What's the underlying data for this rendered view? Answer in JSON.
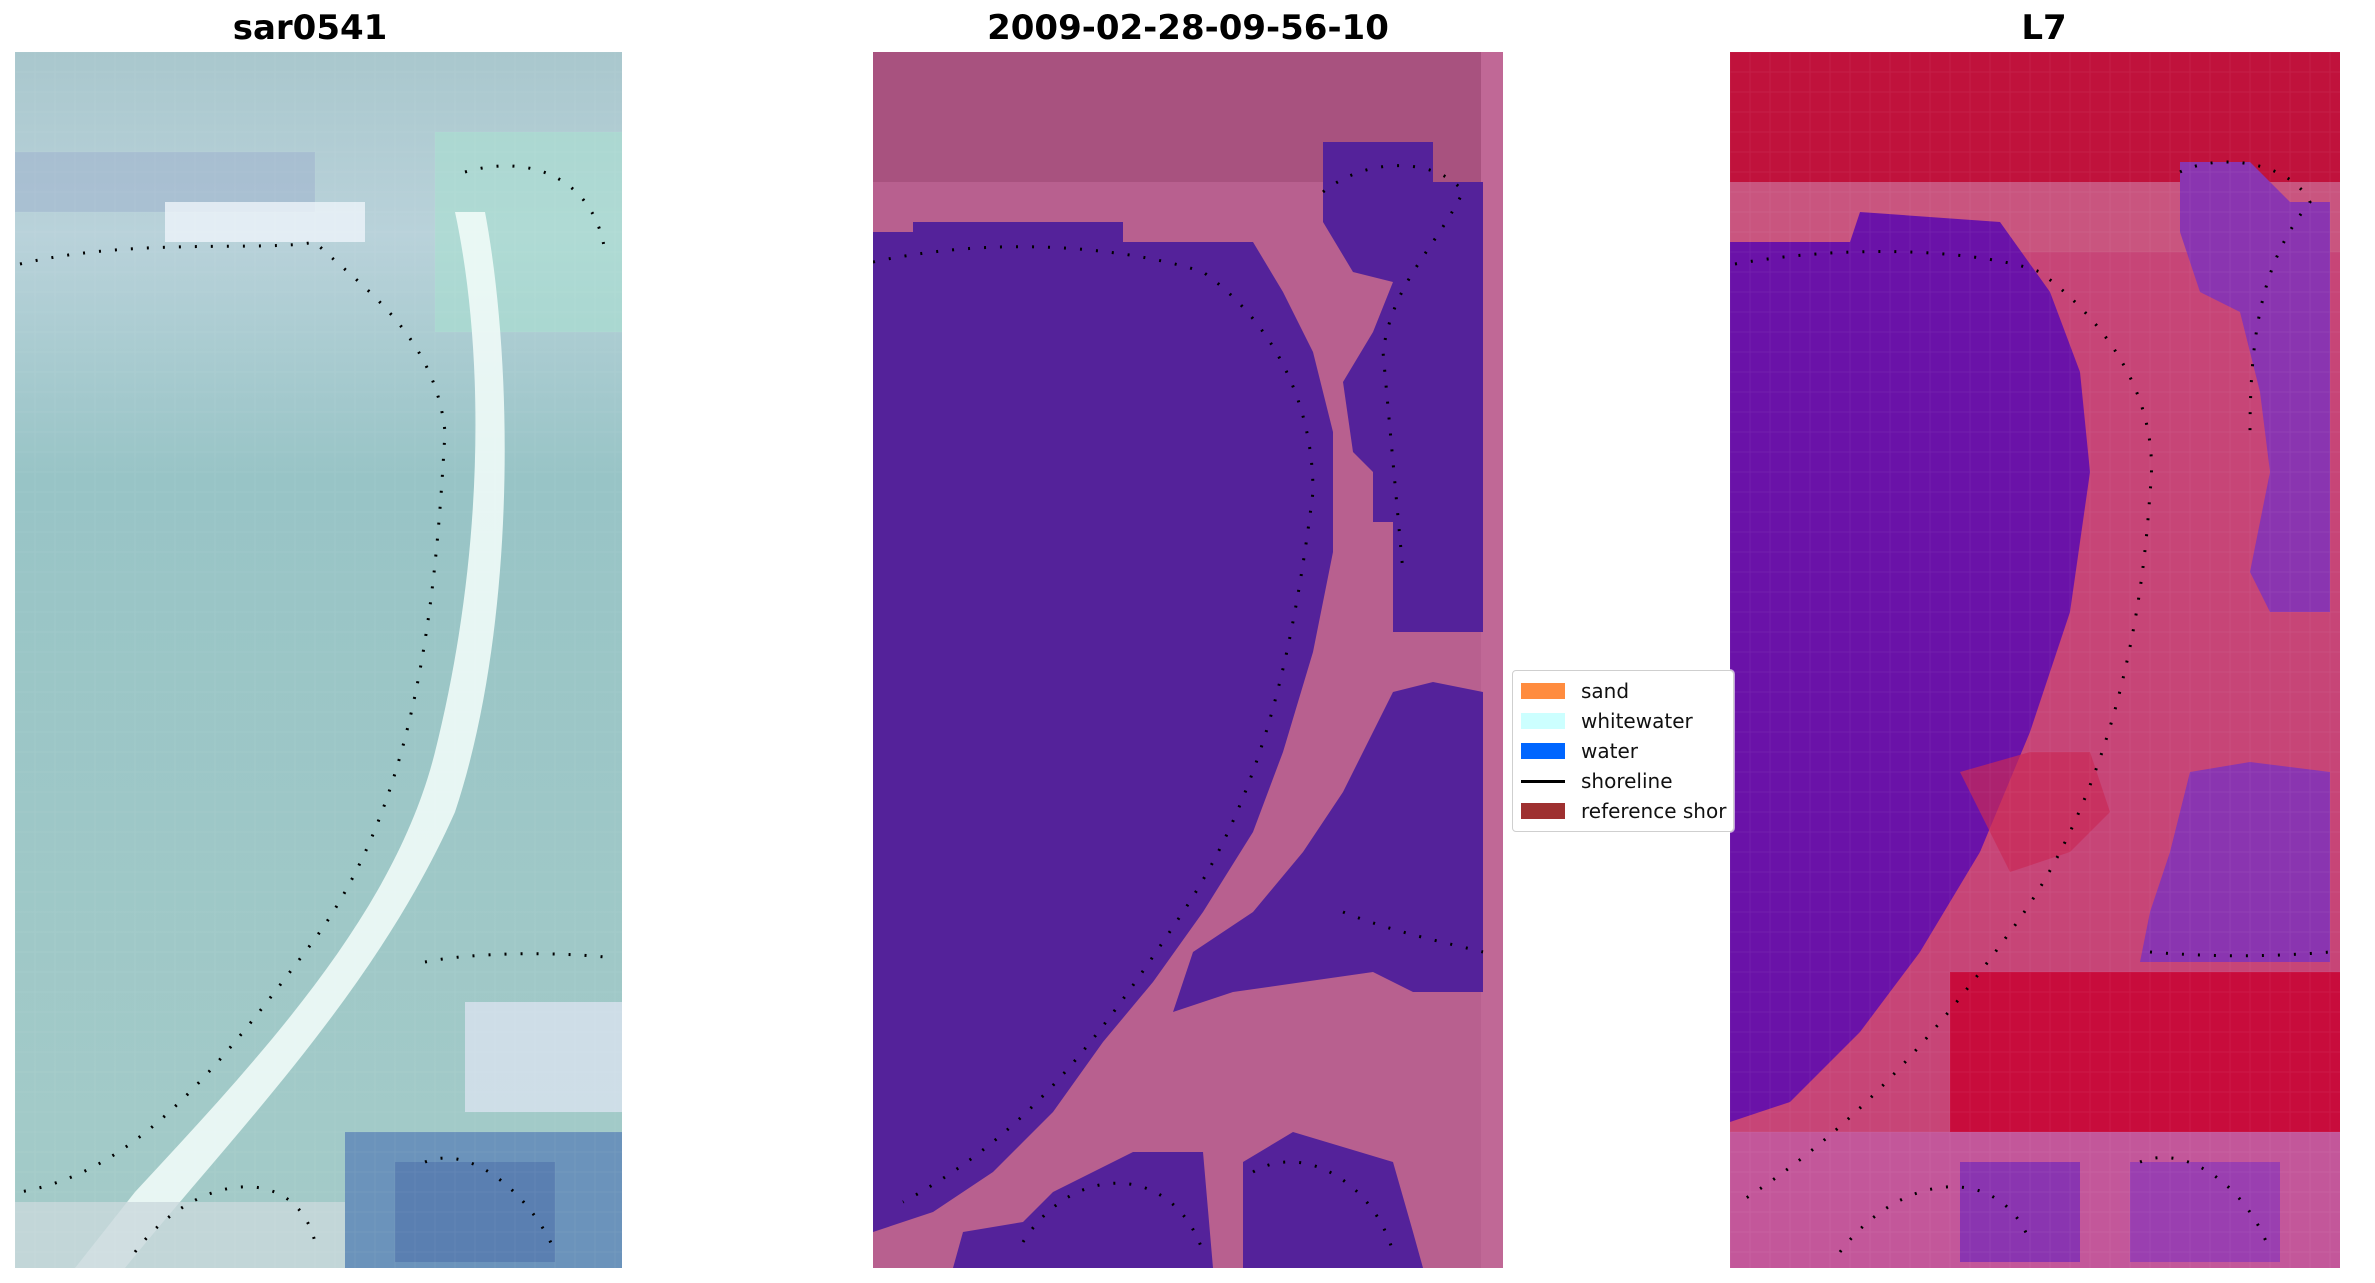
{
  "panels": [
    {
      "title": "sar0541"
    },
    {
      "title": "2009-02-28-09-56-10"
    },
    {
      "title": "L7"
    }
  ],
  "legend": {
    "items": [
      {
        "label": "sand",
        "color": "#ff8c3f",
        "icon": "color-swatch"
      },
      {
        "label": "whitewater",
        "color": "#ccffff",
        "icon": "color-swatch"
      },
      {
        "label": "water",
        "color": "#0066ff",
        "icon": "color-swatch"
      },
      {
        "label": "shoreline",
        "color": "#000000",
        "icon": "line-swatch"
      },
      {
        "label": "reference shor",
        "color": "#9e3030",
        "icon": "color-swatch"
      }
    ]
  },
  "colors": {
    "classified_water": "#54229a",
    "classified_land": "#b8608f",
    "false_color_land": "#c0123c",
    "false_color_water": "#6a12a8",
    "rgb_sea": "#9ec6c4",
    "rgb_sand": "#e8f8f4"
  }
}
